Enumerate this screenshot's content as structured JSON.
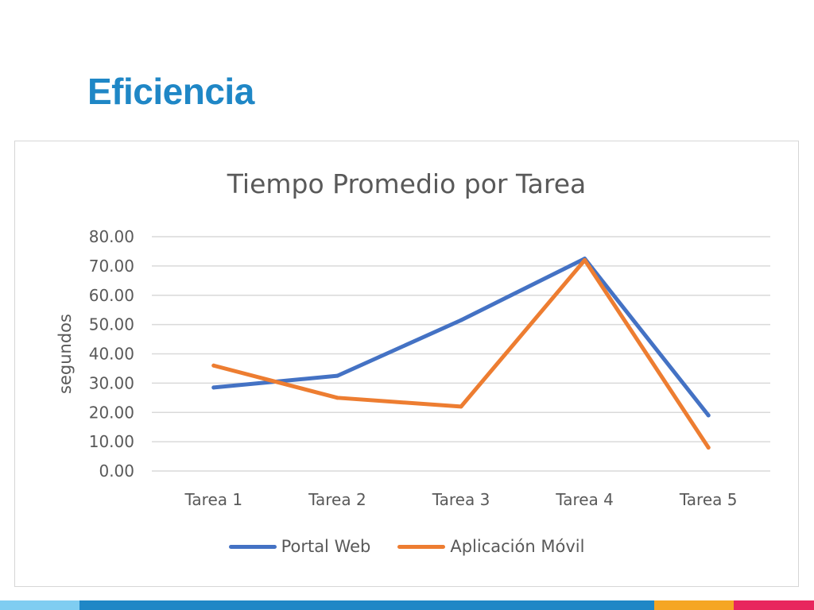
{
  "slide": {
    "title": "Eficiencia"
  },
  "colors": {
    "title": "#1f87c6",
    "bar_segments": [
      "#7fcdf1",
      "#1f87c6",
      "#f5a623",
      "#e8265e"
    ]
  },
  "chart_data": {
    "type": "line",
    "title": "Tiempo Promedio por Tarea",
    "xlabel": "",
    "ylabel": "segundos",
    "categories": [
      "Tarea 1",
      "Tarea 2",
      "Tarea 3",
      "Tarea 4",
      "Tarea 5"
    ],
    "ylim": [
      0,
      80
    ],
    "yticks": [
      "0.00",
      "10.00",
      "20.00",
      "30.00",
      "40.00",
      "50.00",
      "60.00",
      "70.00",
      "80.00"
    ],
    "grid": true,
    "legend_position": "bottom",
    "series": [
      {
        "name": "Portal Web",
        "color": "#4472c4",
        "values": [
          28.5,
          32.5,
          51.5,
          72.5,
          19
        ]
      },
      {
        "name": "Aplicación Móvil",
        "color": "#ed7d31",
        "values": [
          36,
          25,
          22,
          72,
          8
        ]
      }
    ]
  }
}
